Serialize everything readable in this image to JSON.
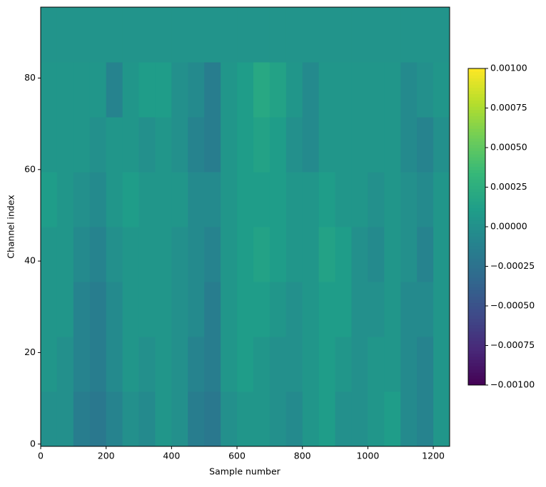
{
  "chart_data": {
    "type": "heatmap",
    "xlabel": "Sample number",
    "ylabel": "Channel index",
    "xlim": [
      0,
      1250
    ],
    "ylim": [
      -0.5,
      95.5
    ],
    "xticks": [
      0,
      200,
      400,
      600,
      800,
      1000,
      1200
    ],
    "yticks": [
      0,
      20,
      40,
      60,
      80
    ],
    "cmap": "viridis",
    "clim": [
      -0.001,
      0.001
    ],
    "cticks": [
      {
        "value": -0.001,
        "label": "−0.00100"
      },
      {
        "value": -0.00075,
        "label": "−0.00075"
      },
      {
        "value": -0.0005,
        "label": "−0.00050"
      },
      {
        "value": -0.00025,
        "label": "−0.00025"
      },
      {
        "value": 0,
        "label": "0.00000"
      },
      {
        "value": 0.00025,
        "label": "0.00025"
      },
      {
        "value": 0.0005,
        "label": "0.00050"
      },
      {
        "value": 0.00075,
        "label": "0.00075"
      },
      {
        "value": 0.001,
        "label": "0.00100"
      }
    ],
    "z": [
      [
        0,
        0,
        -0.00015,
        -0.0002,
        -0.0001,
        0,
        -5e-05,
        5e-05,
        0,
        -0.00015,
        -0.0002,
        0,
        5e-05,
        5e-05,
        0,
        -5e-05,
        5e-05,
        0.0001,
        0,
        0,
        5e-05,
        0.0001,
        -5e-05,
        -0.0001,
        5e-05
      ],
      [
        5e-05,
        0,
        -0.0001,
        -0.00015,
        -5e-05,
        5e-05,
        0,
        5e-05,
        0,
        -0.0001,
        -0.00015,
        5e-05,
        0.0001,
        5e-05,
        0,
        0,
        5e-05,
        0.0001,
        5e-05,
        0,
        5e-05,
        5e-05,
        -5e-05,
        -0.0001,
        5e-05
      ],
      [
        5e-05,
        5e-05,
        -0.0001,
        -0.00015,
        -5e-05,
        5e-05,
        5e-05,
        5e-05,
        0,
        -5e-05,
        -0.00015,
        5e-05,
        0.0001,
        0.0001,
        5e-05,
        0,
        5e-05,
        0.0001,
        0.0001,
        0,
        0,
        5e-05,
        -5e-05,
        -5e-05,
        5e-05
      ],
      [
        5e-05,
        5e-05,
        -5e-05,
        -0.0001,
        0,
        5e-05,
        5e-05,
        5e-05,
        0,
        -5e-05,
        -0.0001,
        5e-05,
        0.0001,
        0.00015,
        0.0001,
        5e-05,
        5e-05,
        0.00015,
        0.0001,
        0,
        -5e-05,
        5e-05,
        0,
        -0.0001,
        5e-05
      ],
      [
        0.0001,
        5e-05,
        0,
        -5e-05,
        5e-05,
        0.0001,
        5e-05,
        5e-05,
        5e-05,
        -5e-05,
        -5e-05,
        5e-05,
        0.0001,
        0.0001,
        0.0001,
        5e-05,
        5e-05,
        0.0001,
        5e-05,
        5e-05,
        0,
        5e-05,
        0,
        -5e-05,
        5e-05
      ],
      [
        5e-05,
        5e-05,
        5e-05,
        0,
        5e-05,
        5e-05,
        0,
        5e-05,
        0,
        -0.0001,
        -0.00015,
        5e-05,
        0.0001,
        0.00015,
        0.0001,
        0,
        -5e-05,
        5e-05,
        5e-05,
        5e-05,
        5e-05,
        5e-05,
        -5e-05,
        -0.0001,
        0
      ],
      [
        5e-05,
        5e-05,
        5e-05,
        5e-05,
        -0.0001,
        5e-05,
        0.0001,
        0.0001,
        0,
        -5e-05,
        -0.00015,
        5e-05,
        0.0001,
        0.0002,
        0.00015,
        5e-05,
        -5e-05,
        5e-05,
        5e-05,
        5e-05,
        5e-05,
        5e-05,
        -5e-05,
        0,
        5e-05
      ],
      [
        3e-05,
        3e-05,
        3e-05,
        3e-05,
        3e-05,
        3e-05,
        3e-05,
        3e-05,
        3e-05,
        3e-05,
        3e-05,
        3e-05,
        3e-05,
        3e-05,
        3e-05,
        3e-05,
        3e-05,
        3e-05,
        3e-05,
        3e-05,
        3e-05,
        3e-05,
        3e-05,
        3e-05,
        3e-05
      ]
    ]
  }
}
